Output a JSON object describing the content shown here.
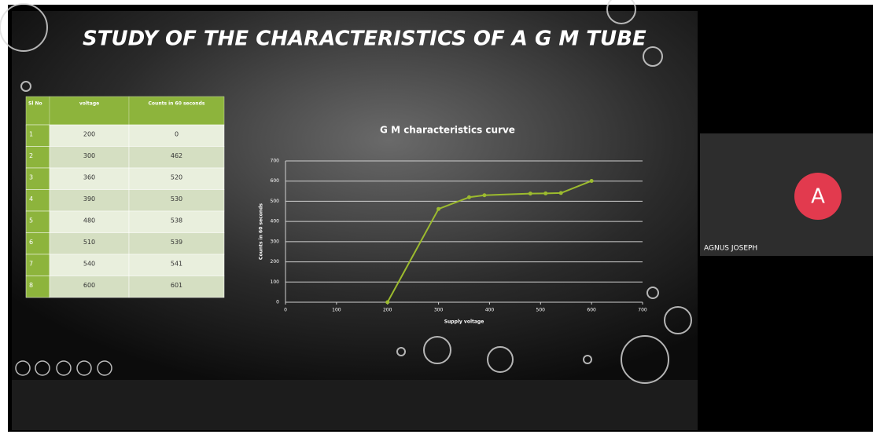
{
  "slide": {
    "title": "STUDY OF THE CHARACTERISTICS OF A G M TUBE",
    "table": {
      "header": [
        "Sl No",
        "voltage",
        "Counts in 60 seconds"
      ],
      "rows": [
        [
          "1",
          "200",
          "0"
        ],
        [
          "2",
          "300",
          "462"
        ],
        [
          "3",
          "360",
          "520"
        ],
        [
          "4",
          "390",
          "530"
        ],
        [
          "5",
          "480",
          "538"
        ],
        [
          "6",
          "510",
          "539"
        ],
        [
          "7",
          "540",
          "541"
        ],
        [
          "8",
          "600",
          "601"
        ]
      ]
    }
  },
  "chart_data": {
    "type": "line",
    "title": "G M characteristics curve",
    "x_label": "Supply voltage",
    "y_label": "Counts in 60 seconds",
    "x": [
      200,
      300,
      360,
      390,
      480,
      510,
      540,
      600
    ],
    "values": [
      0,
      462,
      520,
      530,
      538,
      539,
      541,
      601
    ],
    "color": "#9cbb2e",
    "xlim": [
      0,
      700
    ],
    "xticks": [
      0,
      100,
      200,
      300,
      400,
      500,
      600,
      700
    ],
    "ylim": [
      0,
      700
    ],
    "yticks": [
      0,
      100,
      200,
      300,
      400,
      500,
      600,
      700
    ],
    "grid": true
  },
  "participant": {
    "initial": "A",
    "name": "AGNUS JOSEPH"
  }
}
